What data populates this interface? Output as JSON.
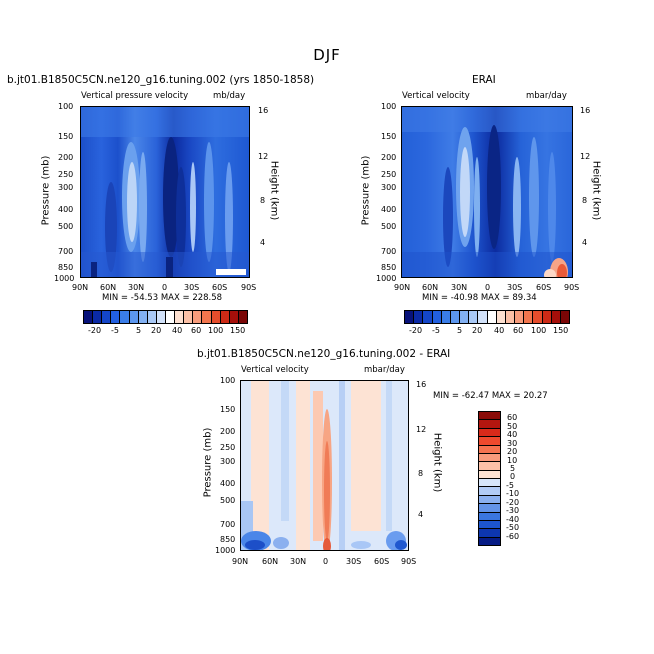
{
  "season": "DJF",
  "panels": [
    {
      "title": "b.jt01.B1850C5CN.ne120_g16.tuning.002 (yrs 1850-1858)",
      "left_label": "Vertical pressure velocity",
      "right_label": "mb/day",
      "stats": "MIN = -54.53   MAX = 228.58"
    },
    {
      "title": "ERAI",
      "left_label": "Vertical velocity",
      "right_label": "mbar/day",
      "stats": "MIN = -40.98   MAX =  89.34"
    },
    {
      "title": "b.jt01.B1850C5CN.ne120_g16.tuning.002 - ERAI",
      "left_label": "Vertical velocity",
      "right_label": "mbar/day",
      "stats": "MIN = -62.47   MAX =  20.27"
    }
  ],
  "axes": {
    "ylabel": "Pressure (mb)",
    "y2label": "Height (km)",
    "pressure_ticks": [
      "100",
      "150",
      "200",
      "250",
      "300",
      "400",
      "500",
      "700",
      "850",
      "1000"
    ],
    "height_ticks": [
      "16",
      "12",
      "8",
      "4"
    ],
    "lat_ticks": [
      "90N",
      "60N",
      "30N",
      "0",
      "30S",
      "60S",
      "90S"
    ]
  },
  "colorbar_top": {
    "labels": [
      "-20",
      "-5",
      "5",
      "20",
      "40",
      "60",
      "100",
      "150"
    ],
    "colors": [
      "#08127a",
      "#0b2aa6",
      "#1446c8",
      "#2260e0",
      "#3a7de8",
      "#5b96ee",
      "#82b0f2",
      "#a9c9f6",
      "#d2e2fa",
      "#ffffff",
      "#fde0d0",
      "#fbc0a6",
      "#f79c7c",
      "#f2764e",
      "#e54d2c",
      "#cc2a16",
      "#a50f0a",
      "#7a0606"
    ]
  },
  "colorbar_diff": {
    "labels": [
      "60",
      "50",
      "40",
      "30",
      "20",
      "10",
      "5",
      "0",
      "-5",
      "-10",
      "-20",
      "-30",
      "-40",
      "-50",
      "-60"
    ],
    "colors": [
      "#8a0b08",
      "#b3160f",
      "#d92a1a",
      "#ee4a2e",
      "#f57350",
      "#f99b7c",
      "#fcc1a8",
      "#fde3d4",
      "#d7e6fa",
      "#b1cbf5",
      "#8bb0ef",
      "#6494e8",
      "#3b76df",
      "#1d56cf",
      "#0d36b0",
      "#061b85"
    ]
  },
  "chart_data": [
    {
      "type": "heatmap",
      "title": "b.jt01.B1850C5CN.ne120_g16.tuning.002 (yrs 1850-1858)",
      "variable": "Vertical pressure velocity",
      "units": "mb/day",
      "xlabel": "",
      "ylabel": "Pressure (mb)",
      "y2label": "Height (km)",
      "x": [
        "90N",
        "60N",
        "30N",
        "0",
        "30S",
        "60S",
        "90S"
      ],
      "y": [
        100,
        150,
        200,
        250,
        300,
        400,
        500,
        700,
        850,
        1000
      ],
      "min": -54.53,
      "max": 228.58
    },
    {
      "type": "heatmap",
      "title": "ERAI",
      "variable": "Vertical velocity",
      "units": "mbar/day",
      "xlabel": "",
      "ylabel": "Pressure (mb)",
      "y2label": "Height (km)",
      "x": [
        "90N",
        "60N",
        "30N",
        "0",
        "30S",
        "60S",
        "90S"
      ],
      "y": [
        100,
        150,
        200,
        250,
        300,
        400,
        500,
        700,
        850,
        1000
      ],
      "min": -40.98,
      "max": 89.34
    },
    {
      "type": "heatmap",
      "title": "b.jt01.B1850C5CN.ne120_g16.tuning.002 - ERAI",
      "variable": "Vertical velocity",
      "units": "mbar/day",
      "xlabel": "",
      "ylabel": "Pressure (mb)",
      "y2label": "Height (km)",
      "x": [
        "90N",
        "60N",
        "30N",
        "0",
        "30S",
        "60S",
        "90S"
      ],
      "y": [
        100,
        150,
        200,
        250,
        300,
        400,
        500,
        700,
        850,
        1000
      ],
      "min": -62.47,
      "max": 20.27
    }
  ]
}
